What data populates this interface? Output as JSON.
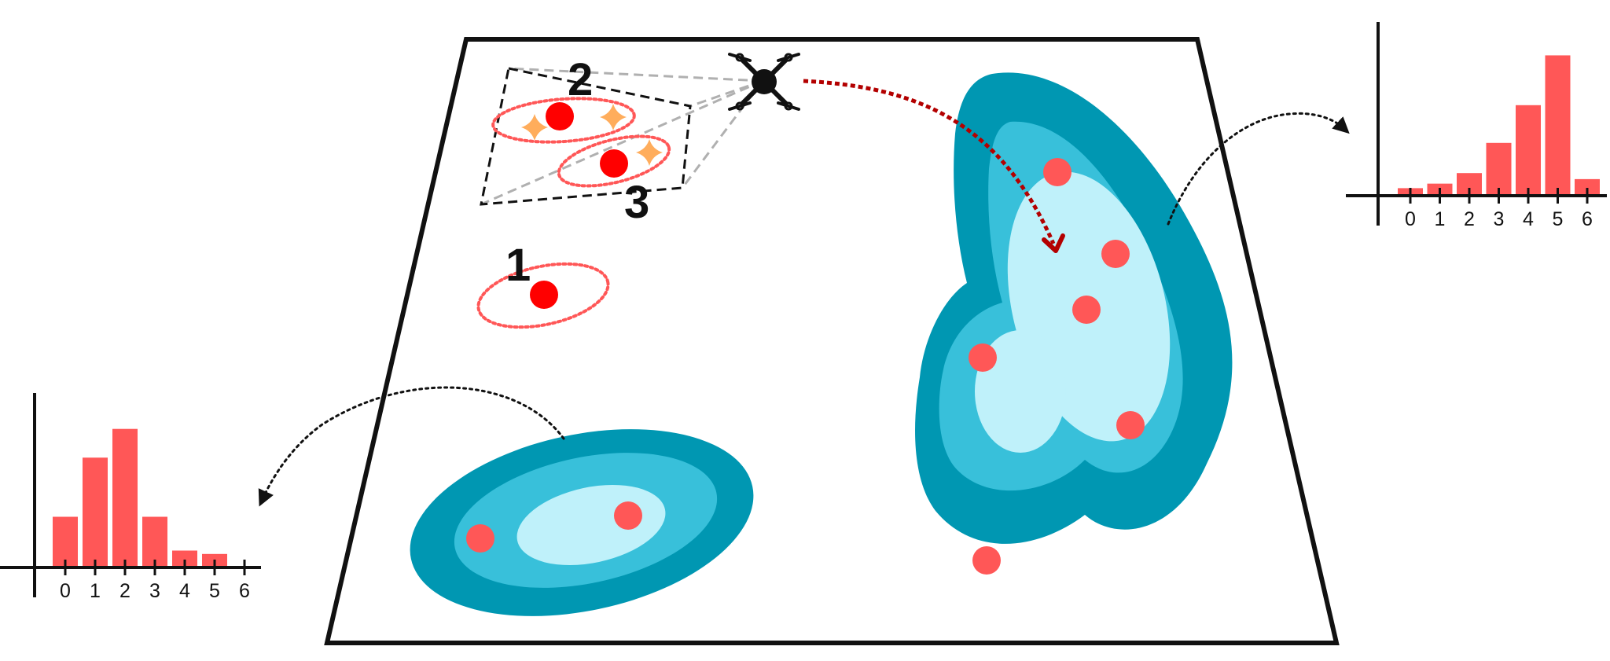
{
  "colors": {
    "frame": "#111111",
    "region_outer": "#0097b2",
    "region_mid": "#38c0da",
    "region_inner": "#bff1fa",
    "sample_dot": "#ff5757",
    "detected_dot": "#ff0000",
    "uncertainty_ellipse": "#ff5757",
    "drone_path": "#b30000",
    "star": "#ffad5c",
    "fov_lines": "#b0b0b0",
    "bar": "#ff5757"
  },
  "drone": {
    "icon": "quadcopter-drone-icon"
  },
  "observations": [
    {
      "label": "1",
      "stars": 0
    },
    {
      "label": "2",
      "stars": 2
    },
    {
      "label": "3",
      "stars": 1
    }
  ],
  "chart_data": [
    {
      "type": "bar",
      "placement": "left",
      "categories": [
        "0",
        "1",
        "2",
        "3",
        "4",
        "5",
        "6"
      ],
      "values": [
        0.3,
        0.65,
        0.82,
        0.3,
        0.1,
        0.08,
        0
      ],
      "ylim": [
        0,
        1
      ],
      "title": "",
      "xlabel": "",
      "ylabel": ""
    },
    {
      "type": "bar",
      "placement": "right",
      "categories": [
        "0",
        "1",
        "2",
        "3",
        "4",
        "5",
        "6"
      ],
      "values": [
        0.05,
        0.08,
        0.15,
        0.35,
        0.6,
        0.93,
        0.11
      ],
      "ylim": [
        0,
        1
      ],
      "title": "",
      "xlabel": "",
      "ylabel": ""
    }
  ]
}
